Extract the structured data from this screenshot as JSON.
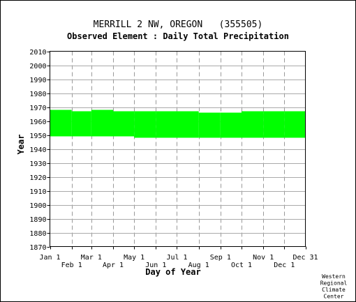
{
  "chart_data": {
    "type": "area",
    "title": "MERRILL 2 NW, OREGON   (355505)",
    "subtitle": "Observed Element : Daily Total Precipitation",
    "xlabel": "Day of Year",
    "ylabel": "Year",
    "x_ticks_upper": [
      "Jan 1",
      "Mar 1",
      "May 1",
      "Jul 1",
      "Sep 1",
      "Nov 1",
      "Dec 31"
    ],
    "x_ticks_lower": [
      "Feb 1",
      "Apr 1",
      "Jun 1",
      "Aug 1",
      "Oct 1",
      "Dec 1"
    ],
    "month_start_days": [
      1,
      32,
      60,
      91,
      121,
      152,
      182,
      213,
      244,
      274,
      305,
      335,
      365
    ],
    "xlim": [
      1,
      365
    ],
    "ylim": [
      1870,
      2010
    ],
    "y_ticks": [
      1870,
      1880,
      1890,
      1900,
      1910,
      1920,
      1930,
      1940,
      1950,
      1960,
      1970,
      1980,
      1990,
      2000,
      2010
    ],
    "grid": true,
    "color": "#00ff00",
    "series": [
      {
        "segments": [
          {
            "x": [
              1,
              32
            ],
            "y": [
              1949,
              1968
            ]
          },
          {
            "x": [
              32,
              60
            ],
            "y": [
              1949,
              1967
            ]
          },
          {
            "x": [
              60,
              91
            ],
            "y": [
              1949,
              1968
            ]
          },
          {
            "x": [
              91,
              121
            ],
            "y": [
              1949,
              1967
            ]
          },
          {
            "x": [
              121,
              152
            ],
            "y": [
              1948,
              1967
            ]
          },
          {
            "x": [
              152,
              182
            ],
            "y": [
              1948,
              1967
            ]
          },
          {
            "x": [
              182,
              213
            ],
            "y": [
              1948,
              1967
            ]
          },
          {
            "x": [
              213,
              244
            ],
            "y": [
              1948,
              1966
            ]
          },
          {
            "x": [
              244,
              274
            ],
            "y": [
              1948,
              1966
            ]
          },
          {
            "x": [
              274,
              305
            ],
            "y": [
              1948,
              1967
            ]
          },
          {
            "x": [
              305,
              335
            ],
            "y": [
              1948,
              1967
            ]
          },
          {
            "x": [
              335,
              365
            ],
            "y": [
              1948,
              1967
            ]
          }
        ]
      }
    ]
  },
  "credit": [
    "Western",
    "Regional",
    "Climate",
    "Center"
  ]
}
